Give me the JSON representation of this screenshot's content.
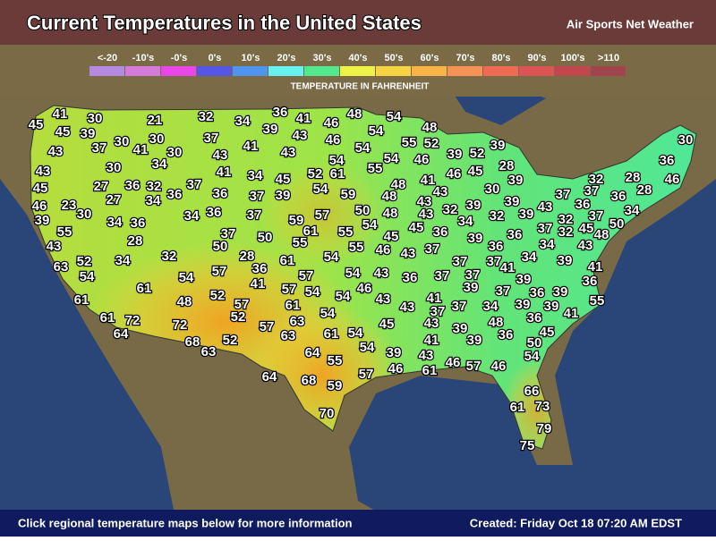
{
  "header": {
    "title": "Current Temperatures in the United States",
    "brand": "Air Sports Net Weather"
  },
  "legend": {
    "caption": "TEMPERATURE IN FAHRENHEIT",
    "items": [
      {
        "label": "<-20",
        "color": "#b48ae0"
      },
      {
        "label": "-10's",
        "color": "#d47ad8"
      },
      {
        "label": "-0's",
        "color": "#e846e6"
      },
      {
        "label": "0's",
        "color": "#5656e6"
      },
      {
        "label": "10's",
        "color": "#4f94ef"
      },
      {
        "label": "20's",
        "color": "#66f2f0"
      },
      {
        "label": "30's",
        "color": "#54e88e"
      },
      {
        "label": "40's",
        "color": "#eef246"
      },
      {
        "label": "50's",
        "color": "#f8d444"
      },
      {
        "label": "60's",
        "color": "#f8b446"
      },
      {
        "label": "70's",
        "color": "#f69256"
      },
      {
        "label": "80's",
        "color": "#ee6a52"
      },
      {
        "label": "90's",
        "color": "#dc5454"
      },
      {
        "label": "100's",
        "color": "#c2464e"
      },
      {
        "label": ">110",
        "color": "#a0444e"
      }
    ]
  },
  "temperatures": [
    45,
    41,
    45,
    30,
    39,
    21,
    32,
    34,
    36,
    39,
    41,
    43,
    46,
    48,
    46,
    54,
    54,
    48,
    55,
    52,
    54,
    39,
    43,
    37,
    30,
    41,
    30,
    30,
    37,
    43,
    41,
    34,
    43,
    54,
    55,
    54,
    46,
    39,
    52,
    28,
    30,
    36,
    46,
    43,
    30,
    41,
    34,
    45,
    52,
    61,
    54,
    48,
    41,
    46,
    45,
    39,
    32,
    28,
    45,
    27,
    36,
    32,
    37,
    36,
    37,
    39,
    59,
    48,
    43,
    30,
    39,
    37,
    37,
    32,
    36,
    28,
    36,
    37,
    45,
    50,
    34,
    48,
    27,
    34,
    36,
    23,
    46,
    30,
    34,
    36,
    34,
    36,
    37,
    59,
    57,
    50,
    48,
    43,
    43,
    32,
    39,
    34,
    32,
    39,
    43,
    32,
    39,
    55,
    43,
    28,
    37,
    50,
    61,
    55,
    55,
    54,
    45,
    55,
    46,
    45,
    36,
    37,
    39,
    36,
    36,
    37,
    34,
    43,
    50,
    28,
    32,
    52,
    34,
    63,
    54,
    36,
    61,
    54,
    43,
    37,
    37,
    41,
    34,
    39,
    57,
    54,
    57,
    54,
    43,
    36,
    37,
    37,
    41,
    39,
    36,
    61,
    41,
    57,
    54,
    46,
    54,
    43,
    39,
    37,
    36,
    39,
    55,
    48,
    52,
    57,
    61,
    61,
    43,
    41,
    37,
    37,
    34,
    39,
    39,
    61,
    72,
    52,
    54,
    72,
    57,
    63,
    43,
    39,
    48,
    36,
    41,
    64,
    61,
    54,
    45,
    36,
    45,
    68,
    52,
    63,
    54,
    41,
    39,
    50,
    63,
    64,
    39,
    55,
    43,
    54,
    57,
    46,
    46,
    61,
    46,
    64,
    68,
    59,
    57,
    66,
    61,
    73,
    70,
    79,
    75
  ],
  "footer": {
    "note": "Click regional temperature maps below for more information",
    "created": "Created: Friday Oct 18 07:20 AM EDST"
  }
}
